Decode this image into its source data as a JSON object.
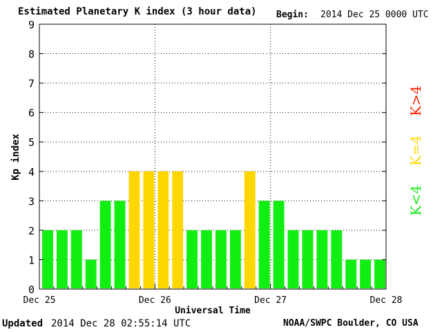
{
  "header": {
    "title": "Estimated Planetary K index (3 hour data)",
    "begin_label": "Begin:",
    "begin_value": "2014 Dec 25 0000 UTC"
  },
  "footer": {
    "updated_label": "Updated",
    "updated_value": "2014 Dec 28 02:55:14 UTC",
    "credit": "NOAA/SWPC Boulder, CO USA"
  },
  "legend": [
    {
      "label": "K<4",
      "color": "#11ee11"
    },
    {
      "label": "K=4",
      "color": "#ffd700"
    },
    {
      "label": "K>4",
      "color": "#ff2200"
    }
  ],
  "chart_data": {
    "type": "bar",
    "title": "Estimated Planetary K index (3 hour data)",
    "ylabel": "Kp index",
    "xlabel": "Universal Time",
    "ylim": [
      0,
      9
    ],
    "yticks": [
      "0",
      "1",
      "2",
      "3",
      "4",
      "5",
      "6",
      "7",
      "8",
      "9"
    ],
    "x_tick_labels": [
      "Dec 25",
      "Dec 26",
      "Dec 27",
      "Dec 28"
    ],
    "bars_per_day": 8,
    "values": [
      2,
      2,
      2,
      1,
      3,
      3,
      4,
      4,
      4,
      4,
      2,
      2,
      2,
      2,
      4,
      3,
      3,
      2,
      2,
      2,
      2,
      1,
      1,
      1
    ],
    "colors": {
      "below4": "#11ee11",
      "equal4": "#ffd700",
      "above4": "#ff2200"
    },
    "grid": true
  }
}
